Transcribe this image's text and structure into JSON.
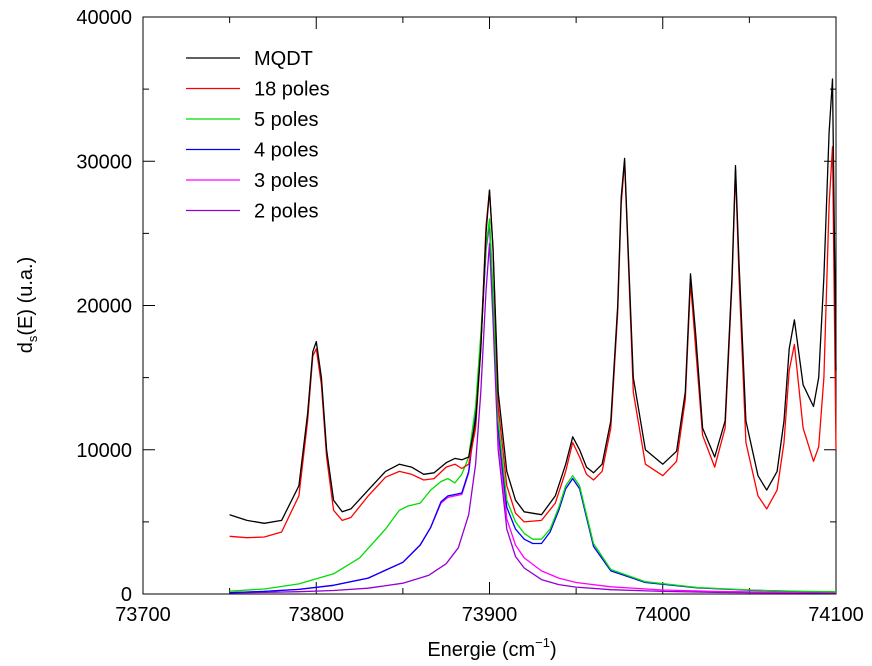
{
  "chart_data": {
    "type": "line",
    "xlabel": "Energie (cm",
    "xlabel_sup": "−1",
    "xlabel_tail": ")",
    "ylabel_main": "d",
    "ylabel_sub": "s",
    "ylabel_tail": "(E)  (u.a.)",
    "xlim": [
      73700,
      74100
    ],
    "ylim": [
      0,
      40000
    ],
    "xticks": [
      73700,
      73800,
      73900,
      74000,
      74100
    ],
    "xtick_labels": [
      "73700",
      "73800",
      "73900",
      "74000",
      "74100"
    ],
    "yticks": [
      0,
      10000,
      20000,
      30000,
      40000
    ],
    "ytick_labels": [
      "0",
      "10000",
      "20000",
      "30000",
      "40000"
    ],
    "legend_position": "top-left",
    "series": [
      {
        "name": "MQDT",
        "color": "#000000",
        "x": [
          73750,
          73760,
          73770,
          73780,
          73790,
          73795,
          73798,
          73800,
          73803,
          73806,
          73810,
          73815,
          73820,
          73830,
          73840,
          73848,
          73855,
          73862,
          73868,
          73875,
          73880,
          73884,
          73888,
          73892,
          73895,
          73898,
          73900,
          73902,
          73905,
          73910,
          73915,
          73920,
          73930,
          73938,
          73944,
          73948,
          73952,
          73956,
          73960,
          73965,
          73970,
          73974,
          73976,
          73978,
          73980,
          73983,
          73990,
          74000,
          74008,
          74013,
          74016,
          74019,
          74023,
          74030,
          74036,
          74040,
          74042,
          74044,
          74048,
          74055,
          74060,
          74066,
          74070,
          74073,
          74076,
          74081,
          74087,
          74090,
          74093,
          74096,
          74098,
          74100
        ],
        "y": [
          5500,
          5100,
          4900,
          5100,
          7500,
          12500,
          16800,
          17500,
          15000,
          10000,
          6500,
          5700,
          5900,
          7200,
          8500,
          9000,
          8800,
          8300,
          8400,
          9100,
          9400,
          9300,
          9500,
          12000,
          17000,
          25000,
          28000,
          24000,
          14000,
          8500,
          6500,
          5700,
          5500,
          6800,
          9000,
          10900,
          10000,
          8800,
          8400,
          9000,
          12000,
          20000,
          27500,
          30200,
          24000,
          15000,
          10000,
          9000,
          9900,
          14000,
          22200,
          18000,
          11500,
          9500,
          12000,
          22000,
          29700,
          23000,
          12000,
          8200,
          7200,
          8500,
          12000,
          17000,
          19000,
          14500,
          13000,
          15000,
          22000,
          32000,
          35700,
          15500
        ]
      },
      {
        "name": "18 poles",
        "color": "#ff0000",
        "x": [
          73750,
          73760,
          73770,
          73780,
          73790,
          73795,
          73798,
          73800,
          73803,
          73806,
          73810,
          73815,
          73820,
          73830,
          73840,
          73848,
          73855,
          73862,
          73868,
          73875,
          73880,
          73884,
          73888,
          73892,
          73895,
          73898,
          73900,
          73902,
          73905,
          73910,
          73915,
          73920,
          73930,
          73938,
          73944,
          73948,
          73952,
          73956,
          73960,
          73965,
          73970,
          73974,
          73976,
          73978,
          73980,
          73983,
          73990,
          74000,
          74008,
          74013,
          74016,
          74019,
          74023,
          74030,
          74036,
          74040,
          74042,
          74044,
          74048,
          74055,
          74060,
          74066,
          74070,
          74073,
          74076,
          74081,
          74087,
          74090,
          74093,
          74096,
          74098,
          74100
        ],
        "y": [
          4000,
          3900,
          3950,
          4300,
          6800,
          12000,
          16500,
          17000,
          14500,
          9500,
          5800,
          5100,
          5300,
          6800,
          8100,
          8500,
          8300,
          7900,
          8000,
          8800,
          9000,
          8700,
          9000,
          11500,
          17000,
          25500,
          28000,
          24000,
          13000,
          7500,
          5600,
          5000,
          5100,
          6300,
          8500,
          10500,
          9500,
          8300,
          7900,
          8500,
          11500,
          19500,
          27000,
          30000,
          23500,
          14000,
          9000,
          8200,
          9200,
          13500,
          21600,
          17000,
          11000,
          8800,
          11500,
          21500,
          29400,
          22000,
          10500,
          6800,
          5900,
          7200,
          10500,
          15500,
          17300,
          11500,
          9200,
          10200,
          15000,
          27000,
          31000,
          10000
        ]
      },
      {
        "name": "5 poles",
        "color": "#00dd00",
        "x": [
          73750,
          73770,
          73790,
          73810,
          73825,
          73840,
          73848,
          73853,
          73860,
          73866,
          73872,
          73876,
          73880,
          73884,
          73888,
          73892,
          73895,
          73898,
          73900,
          73902,
          73905,
          73910,
          73915,
          73920,
          73925,
          73930,
          73935,
          73940,
          73944,
          73948,
          73952,
          73956,
          73960,
          73970,
          73990,
          74020,
          74050,
          74080,
          74100
        ],
        "y": [
          200,
          350,
          700,
          1400,
          2500,
          4500,
          5800,
          6100,
          6300,
          7200,
          7800,
          8000,
          7700,
          8300,
          9500,
          13000,
          18000,
          24000,
          26000,
          21000,
          12000,
          6500,
          5000,
          4200,
          3800,
          3800,
          4500,
          6000,
          7500,
          8200,
          7500,
          5500,
          3500,
          1700,
          850,
          450,
          280,
          180,
          150
        ]
      },
      {
        "name": "4 poles",
        "color": "#0000ff",
        "x": [
          73750,
          73770,
          73790,
          73810,
          73830,
          73850,
          73860,
          73866,
          73872,
          73876,
          73880,
          73884,
          73888,
          73892,
          73895,
          73898,
          73900,
          73902,
          73905,
          73910,
          73915,
          73920,
          73925,
          73930,
          73935,
          73940,
          73944,
          73948,
          73952,
          73956,
          73960,
          73970,
          73990,
          74020,
          74050,
          74080,
          74100
        ],
        "y": [
          100,
          180,
          320,
          600,
          1100,
          2200,
          3400,
          4600,
          6400,
          6800,
          6900,
          7000,
          8500,
          12500,
          17500,
          24000,
          25800,
          20500,
          11500,
          6000,
          4500,
          3800,
          3500,
          3500,
          4300,
          5800,
          7300,
          8000,
          7300,
          5300,
          3300,
          1600,
          800,
          420,
          260,
          170,
          140
        ]
      },
      {
        "name": "3 poles",
        "color": "#ff00ff",
        "x": [
          73750,
          73770,
          73790,
          73810,
          73830,
          73850,
          73860,
          73866,
          73872,
          73876,
          73880,
          73884,
          73888,
          73892,
          73895,
          73898,
          73900,
          73902,
          73905,
          73910,
          73915,
          73920,
          73930,
          73940,
          73950,
          73970,
          74000,
          74030,
          74060,
          74100
        ],
        "y": [
          100,
          180,
          320,
          600,
          1100,
          2200,
          3400,
          4600,
          6300,
          6700,
          6800,
          6900,
          8400,
          12300,
          17300,
          23800,
          25600,
          20000,
          11000,
          5200,
          3400,
          2500,
          1600,
          1100,
          800,
          500,
          280,
          180,
          130,
          100
        ]
      },
      {
        "name": "2 poles",
        "color": "#9400d3",
        "x": [
          73750,
          73770,
          73790,
          73810,
          73830,
          73850,
          73865,
          73875,
          73882,
          73888,
          73892,
          73895,
          73898,
          73900,
          73902,
          73905,
          73910,
          73915,
          73920,
          73930,
          73940,
          73950,
          73970,
          74000,
          74030,
          74060,
          74100
        ],
        "y": [
          80,
          110,
          160,
          240,
          400,
          750,
          1300,
          2100,
          3200,
          5500,
          9000,
          14000,
          21000,
          24300,
          19000,
          10000,
          4500,
          2600,
          1800,
          1000,
          650,
          480,
          300,
          180,
          120,
          90,
          70
        ]
      }
    ]
  }
}
